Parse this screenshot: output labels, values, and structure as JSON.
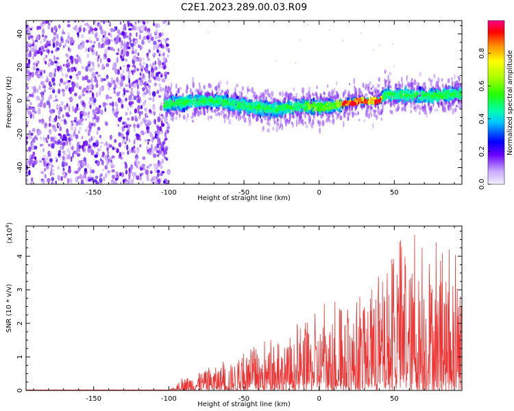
{
  "chart_data": [
    {
      "type": "heatmap",
      "title": "C2E1.2023.289.00.03.R09",
      "xlabel": "Height of straight line (km)",
      "ylabel": "Frequency (Hz)",
      "xlim": [
        -195,
        95
      ],
      "ylim": [
        -50,
        48
      ],
      "xticks": [
        "-150",
        "-100",
        "-50",
        "0",
        "50"
      ],
      "yticks": [
        "-40",
        "-20",
        "0",
        "20",
        "40"
      ],
      "colorbar": {
        "label": "Normalized spectral amplitude",
        "range": [
          0,
          1
        ],
        "ticks": [
          "0.0",
          "0.2",
          "0.4",
          "0.6",
          "0.8"
        ]
      },
      "ridge": {
        "x": [
          -103,
          -90,
          -70,
          -50,
          -30,
          -10,
          0,
          10,
          20,
          30,
          40,
          45,
          60,
          75,
          95
        ],
        "freq": [
          -2,
          -1,
          0,
          -3,
          -5,
          -3,
          -4,
          -3,
          -1,
          0,
          0,
          4,
          3,
          3,
          4
        ]
      },
      "noise_region_x": [
        -195,
        -103
      ]
    },
    {
      "type": "line",
      "xlabel": "Height of straight line (km)",
      "ylabel": "SNR (10 * v/v)",
      "y_multiplier": "(x10",
      "y_exponent": "4",
      "y_multiplier_close": ")",
      "xlim": [
        -195,
        95
      ],
      "ylim": [
        0,
        4.9
      ],
      "xticks": [
        "-150",
        "-100",
        "-50",
        "0",
        "50"
      ],
      "yticks": [
        "0",
        "1",
        "2",
        "3",
        "4"
      ],
      "envelope": {
        "x": [
          -195,
          -100,
          -95,
          -90,
          -70,
          -50,
          -30,
          -10,
          0,
          20,
          40,
          60,
          80,
          95
        ],
        "max": [
          0.01,
          0.02,
          0.15,
          0.5,
          0.9,
          1.2,
          1.6,
          2.1,
          2.6,
          2.8,
          3.6,
          4.9,
          4.5,
          4.0
        ]
      },
      "color": "#ee3333"
    }
  ]
}
